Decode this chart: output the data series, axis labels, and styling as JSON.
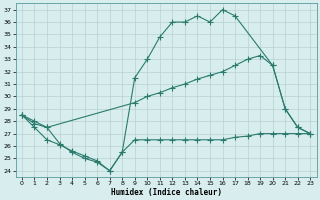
{
  "line1_x": [
    0,
    1,
    2,
    3,
    4,
    5,
    6,
    7,
    8,
    9,
    10,
    11,
    12,
    13,
    14,
    15,
    16,
    17,
    20,
    21,
    22,
    23
  ],
  "line1_y": [
    28.5,
    27.8,
    27.5,
    26.2,
    25.5,
    25.0,
    24.7,
    24.0,
    25.5,
    31.5,
    33.0,
    34.8,
    36.0,
    36.0,
    36.5,
    36.0,
    37.0,
    36.5,
    32.5,
    29.0,
    27.5,
    27.0
  ],
  "line2_x": [
    0,
    1,
    2,
    9,
    10,
    11,
    12,
    13,
    14,
    15,
    16,
    17,
    18,
    19,
    20,
    21,
    22,
    23
  ],
  "line2_y": [
    28.5,
    28.0,
    27.5,
    29.5,
    30.0,
    30.3,
    30.7,
    31.0,
    31.4,
    31.7,
    32.0,
    32.5,
    33.0,
    33.3,
    32.5,
    29.0,
    27.5,
    27.0
  ],
  "line3_x": [
    0,
    1,
    2,
    3,
    4,
    5,
    6,
    7,
    8,
    9,
    10,
    11,
    12,
    13,
    14,
    15,
    16,
    17,
    18,
    19,
    20,
    21,
    22,
    23
  ],
  "line3_y": [
    28.5,
    27.5,
    26.5,
    26.1,
    25.6,
    25.2,
    24.8,
    24.0,
    25.5,
    26.5,
    26.5,
    26.5,
    26.5,
    26.5,
    26.5,
    26.5,
    26.5,
    26.7,
    26.8,
    27.0,
    27.0,
    27.0,
    27.0,
    27.0
  ],
  "color": "#2a7a6e",
  "bg_color": "#d8eeee",
  "grid_color": "#c8dede",
  "title": "",
  "xlabel": "Humidex (Indice chaleur)",
  "xlim": [
    -0.5,
    23.5
  ],
  "ylim": [
    23.5,
    37.5
  ],
  "xticks": [
    0,
    1,
    2,
    3,
    4,
    5,
    6,
    7,
    8,
    9,
    10,
    11,
    12,
    13,
    14,
    15,
    16,
    17,
    18,
    19,
    20,
    21,
    22,
    23
  ],
  "yticks": [
    24,
    25,
    26,
    27,
    28,
    29,
    30,
    31,
    32,
    33,
    34,
    35,
    36,
    37
  ]
}
